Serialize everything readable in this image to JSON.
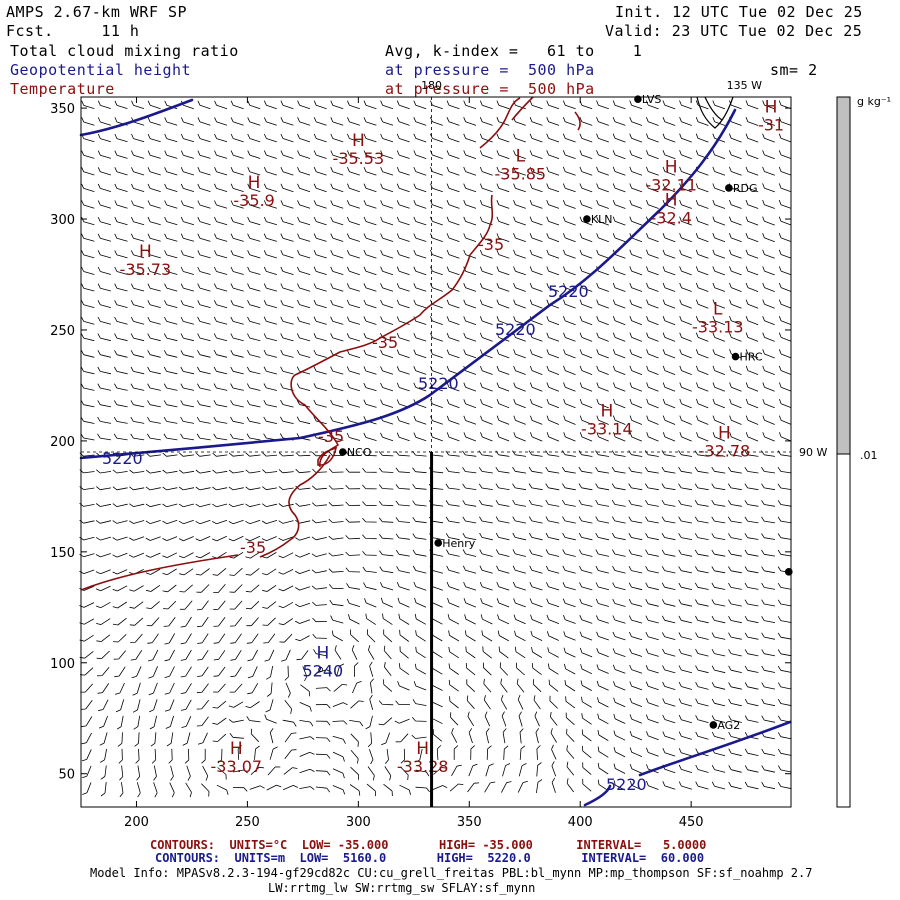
{
  "header": {
    "model": "AMPS 2.67-km WRF SP",
    "fcst_label": "Fcst.",
    "fcst_value": "11 h",
    "init": "Init. 12 UTC Tue 02 Dec 25",
    "valid": "Valid: 23 UTC Tue 02 Dec 25",
    "field1": "Total cloud mixing ratio",
    "field1_desc": "Avg, k-index =   61 to    1",
    "field2": "Geopotential height",
    "field2_desc": "at pressure =  500 hPa",
    "sm": "sm= 2",
    "field3": "Temperature",
    "field3_desc": "at pressure =  500 hPa"
  },
  "map": {
    "xlim": [
      175,
      495
    ],
    "ylim": [
      35,
      355
    ],
    "x_ticks": [
      200,
      250,
      300,
      350,
      400,
      450
    ],
    "y_ticks": [
      50,
      100,
      150,
      200,
      250,
      300,
      350
    ],
    "meridian_labels": [
      {
        "text": "180",
        "x": 333,
        "y": 355
      },
      {
        "text": "135 W",
        "x": 466,
        "y": 355
      },
      {
        "text": "90 W",
        "x": 495,
        "y": 195
      }
    ],
    "colorbar": {
      "unit": "g kg⁻¹",
      "tick": ".01",
      "tick_value": 0.01,
      "color": "#c0c0c0"
    },
    "stations": [
      {
        "name": "LVS",
        "x": 426,
        "y": 354
      },
      {
        "name": "RDG",
        "x": 467,
        "y": 314
      },
      {
        "name": "KLN",
        "x": 403,
        "y": 300
      },
      {
        "name": "HRC",
        "x": 470,
        "y": 238
      },
      {
        "name": "NCO",
        "x": 293,
        "y": 195
      },
      {
        "name": "Henry",
        "x": 336,
        "y": 154
      },
      {
        "name": "AG2",
        "x": 460,
        "y": 72
      },
      {
        "name": "",
        "x": 494,
        "y": 141
      }
    ],
    "section_line": {
      "x": 333,
      "y_start": 35,
      "y_end": 195
    },
    "height_labels": [
      "5220",
      "5220",
      "5220",
      "5220",
      "5220",
      "5240"
    ],
    "temp_labels": [
      "-35",
      "-35",
      "-35",
      "-35"
    ],
    "highs_lows": [
      {
        "letter": "H",
        "value": "-35.53",
        "kind": "temp",
        "x": 300,
        "y": 333
      },
      {
        "letter": "L",
        "value": "-35.85",
        "kind": "temp",
        "x": 373,
        "y": 326
      },
      {
        "letter": "H",
        "value": "-32.11",
        "kind": "temp",
        "x": 441,
        "y": 321
      },
      {
        "letter": "H",
        "value": "-31",
        "kind": "temp",
        "x": 486,
        "y": 348
      },
      {
        "letter": "H",
        "value": "-35.9",
        "kind": "temp",
        "x": 253,
        "y": 314
      },
      {
        "letter": "H",
        "value": "-32.4",
        "kind": "temp",
        "x": 441,
        "y": 306
      },
      {
        "letter": "H",
        "value": "-35.73",
        "kind": "temp",
        "x": 204,
        "y": 283
      },
      {
        "letter": "L",
        "value": "-33.13",
        "kind": "temp",
        "x": 462,
        "y": 257
      },
      {
        "letter": "H",
        "value": "-33.14",
        "kind": "temp",
        "x": 412,
        "y": 211
      },
      {
        "letter": "H",
        "value": "-32.78",
        "kind": "temp",
        "x": 465,
        "y": 201
      },
      {
        "letter": "H",
        "value": "5240",
        "kind": "height",
        "x": 284,
        "y": 102
      },
      {
        "letter": "H",
        "value": "-33.07",
        "kind": "temp",
        "x": 245,
        "y": 59
      },
      {
        "letter": "H",
        "value": "-33.28",
        "kind": "temp",
        "x": 329,
        "y": 59
      }
    ]
  },
  "footer": {
    "line1": "CONTOURS:  UNITS=°C  LOW= -35.000       HIGH= -35.000      INTERVAL=   5.0000",
    "line2": "CONTOURS:  UNITS=m  LOW=  5160.0       HIGH=  5220.0       INTERVAL=  60.000",
    "line3": "Model Info: MPASv8.2.3-194-gf29cd82c CU:cu_grell_freitas PBL:bl_mynn MP:mp_thompson SF:sf_noahmp 2.7",
    "line4": "LW:rrtmg_lw SW:rrtmg_sw SFLAY:sf_mynn"
  },
  "colors": {
    "height": "#1a1a8c",
    "temp": "#8b0f0f",
    "wind": "#000000"
  }
}
